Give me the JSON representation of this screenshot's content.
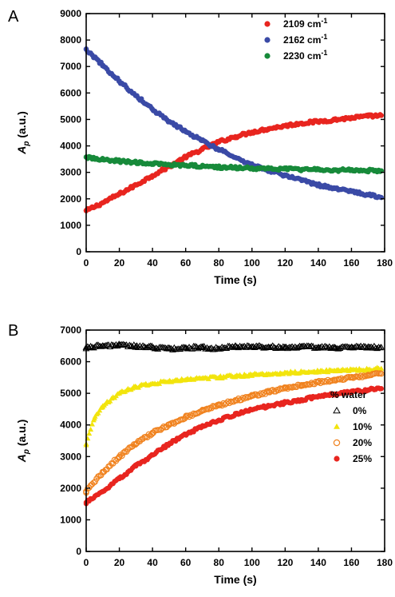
{
  "chart_data": [
    {
      "panel_label": "A",
      "type": "scatter",
      "xlabel": "Time (s)",
      "ylabel": "A",
      "ylabel_sub": "p",
      "ylabel_unit": "(a.u.)",
      "xlim": [
        0,
        180
      ],
      "ylim": [
        0,
        9000
      ],
      "xticks": [
        0,
        20,
        40,
        60,
        80,
        100,
        120,
        140,
        160,
        180
      ],
      "yticks": [
        0,
        1000,
        2000,
        3000,
        4000,
        5000,
        6000,
        7000,
        8000,
        9000
      ],
      "grid": false,
      "legend_position": "top-right",
      "series": [
        {
          "name": "2109 cm",
          "name_sup": "-1",
          "color": "#e8251f",
          "marker": "filled-circle",
          "x": [
            0,
            10,
            20,
            30,
            40,
            50,
            60,
            70,
            80,
            90,
            100,
            110,
            120,
            130,
            140,
            150,
            160,
            170,
            178
          ],
          "y": [
            1550,
            1850,
            2180,
            2520,
            2880,
            3220,
            3580,
            3870,
            4150,
            4350,
            4520,
            4650,
            4760,
            4860,
            4920,
            4990,
            5060,
            5120,
            5150
          ]
        },
        {
          "name": "2162 cm",
          "name_sup": "-1",
          "color": "#3a4aa6",
          "marker": "filled-circle",
          "x": [
            0,
            10,
            20,
            30,
            40,
            50,
            60,
            70,
            80,
            90,
            100,
            110,
            120,
            130,
            140,
            150,
            160,
            170,
            178
          ],
          "y": [
            7650,
            7050,
            6450,
            5900,
            5380,
            4920,
            4550,
            4200,
            3870,
            3560,
            3280,
            3080,
            2880,
            2690,
            2520,
            2390,
            2280,
            2150,
            2050
          ]
        },
        {
          "name": "2230 cm",
          "name_sup": "-1",
          "color": "#178a3a",
          "marker": "filled-circle",
          "x": [
            0,
            10,
            20,
            30,
            40,
            50,
            60,
            70,
            80,
            90,
            100,
            110,
            120,
            130,
            140,
            150,
            160,
            170,
            178
          ],
          "y": [
            3570,
            3480,
            3420,
            3370,
            3330,
            3290,
            3260,
            3230,
            3200,
            3180,
            3160,
            3140,
            3130,
            3110,
            3100,
            3090,
            3080,
            3070,
            3060
          ]
        }
      ]
    },
    {
      "panel_label": "B",
      "type": "scatter",
      "xlabel": "Time (s)",
      "ylabel": "A",
      "ylabel_sub": "p",
      "ylabel_unit": "(a.u.)",
      "xlim": [
        0,
        180
      ],
      "ylim": [
        0,
        7000
      ],
      "xticks": [
        0,
        20,
        40,
        60,
        80,
        100,
        120,
        140,
        160,
        180
      ],
      "yticks": [
        0,
        1000,
        2000,
        3000,
        4000,
        5000,
        6000,
        7000
      ],
      "grid": false,
      "legend_title": "% water",
      "legend_position": "right",
      "series": [
        {
          "name": "0%",
          "color": "#000000",
          "marker": "open-triangle",
          "x": [
            0,
            10,
            20,
            30,
            40,
            50,
            60,
            70,
            80,
            90,
            100,
            110,
            120,
            130,
            140,
            150,
            160,
            170,
            178
          ],
          "y": [
            6450,
            6500,
            6520,
            6480,
            6450,
            6400,
            6430,
            6450,
            6400,
            6480,
            6470,
            6460,
            6450,
            6460,
            6450,
            6440,
            6450,
            6450,
            6450
          ]
        },
        {
          "name": "10%",
          "color": "#f2e40c",
          "marker": "filled-triangle",
          "x": [
            0,
            5,
            10,
            20,
            30,
            40,
            50,
            60,
            70,
            80,
            90,
            100,
            110,
            120,
            130,
            140,
            150,
            160,
            170,
            178
          ],
          "y": [
            3400,
            4200,
            4600,
            5000,
            5200,
            5300,
            5380,
            5420,
            5460,
            5500,
            5540,
            5580,
            5610,
            5640,
            5660,
            5690,
            5710,
            5730,
            5750,
            5780
          ]
        },
        {
          "name": "20%",
          "color": "#f0821e",
          "marker": "open-circle",
          "x": [
            0,
            10,
            20,
            30,
            40,
            50,
            60,
            70,
            80,
            90,
            100,
            110,
            120,
            130,
            140,
            150,
            160,
            170,
            178
          ],
          "y": [
            1900,
            2500,
            3000,
            3400,
            3750,
            4000,
            4250,
            4450,
            4620,
            4780,
            4920,
            5040,
            5160,
            5260,
            5350,
            5430,
            5500,
            5560,
            5620
          ]
        },
        {
          "name": "25%",
          "color": "#e8251f",
          "marker": "filled-circle",
          "x": [
            0,
            10,
            20,
            30,
            40,
            50,
            60,
            70,
            80,
            90,
            100,
            110,
            120,
            130,
            140,
            150,
            160,
            170,
            178
          ],
          "y": [
            1550,
            1900,
            2300,
            2700,
            3050,
            3400,
            3700,
            3950,
            4150,
            4330,
            4480,
            4600,
            4700,
            4800,
            4900,
            4980,
            5050,
            5110,
            5150
          ]
        }
      ]
    }
  ]
}
